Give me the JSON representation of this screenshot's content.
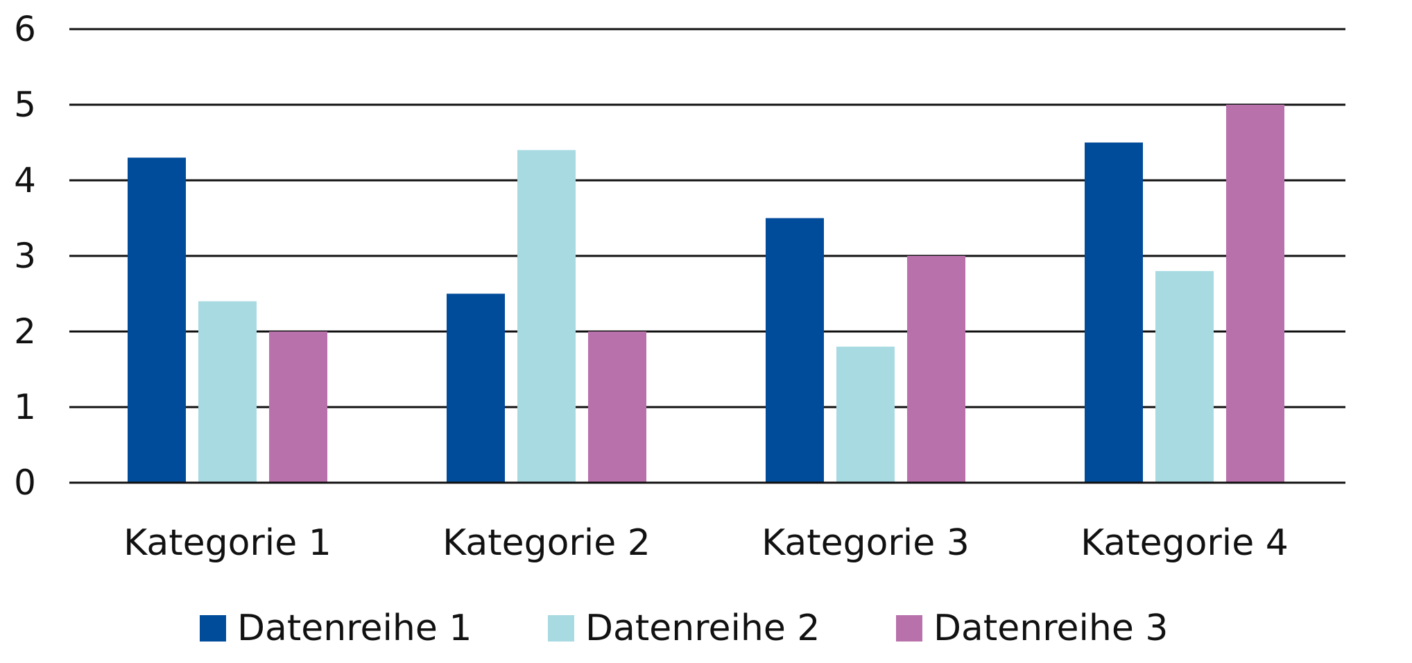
{
  "chart_data": {
    "type": "bar",
    "categories": [
      "Kategorie 1",
      "Kategorie 2",
      "Kategorie 3",
      "Kategorie 4"
    ],
    "series": [
      {
        "name": "Datenreihe 1",
        "values": [
          4.3,
          2.5,
          3.5,
          4.5
        ],
        "color": "#004b9a"
      },
      {
        "name": "Datenreihe 2",
        "values": [
          2.4,
          4.4,
          1.8,
          2.8
        ],
        "color": "#a8dae2"
      },
      {
        "name": "Datenreihe 3",
        "values": [
          2.0,
          2.0,
          3.0,
          5.0
        ],
        "color": "#b971ab"
      }
    ],
    "ylim": [
      0,
      6
    ],
    "yticks": [
      "0",
      "1",
      "2",
      "3",
      "4",
      "5",
      "6"
    ],
    "grid": true,
    "legend_position": "bottom"
  }
}
